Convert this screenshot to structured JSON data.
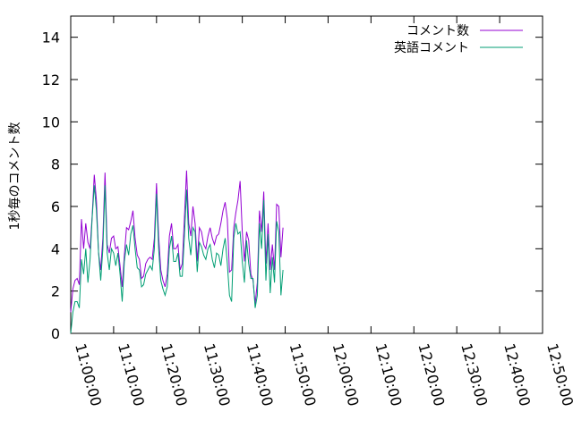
{
  "chart_data": {
    "type": "line",
    "ylabel": "1秒毎のコメント数",
    "xlabel": "",
    "ylim": [
      0,
      15
    ],
    "yticks": [
      "0",
      "2",
      "4",
      "6",
      "8",
      "10",
      "12",
      "14"
    ],
    "x_start": "11:00:00",
    "x_step_seconds": 30,
    "xticks": [
      "11:00:00",
      "11:10:00",
      "11:20:00",
      "11:30:00",
      "11:40:00",
      "11:50:00",
      "12:00:00",
      "12:10:00",
      "12:20:00",
      "12:30:00",
      "12:40:00",
      "12:50:00"
    ],
    "xlim": [
      "11:00:00",
      "12:50:00"
    ],
    "grid": false,
    "legend_position": "top-right",
    "series": [
      {
        "name": "コメント数",
        "color": "#9400d3",
        "values": [
          1.0,
          2.1,
          2.5,
          2.6,
          2.3,
          5.4,
          4.0,
          5.2,
          4.3,
          4.0,
          5.6,
          7.5,
          6.3,
          3.8,
          3.0,
          4.5,
          7.6,
          4.2,
          3.8,
          4.5,
          4.6,
          4.0,
          4.1,
          3.2,
          2.2,
          3.7,
          5.0,
          4.9,
          5.3,
          5.8,
          4.5,
          3.7,
          3.5,
          2.6,
          2.7,
          3.3,
          3.5,
          3.6,
          3.5,
          4.5,
          7.1,
          4.6,
          3.0,
          2.5,
          2.2,
          2.8,
          4.6,
          5.2,
          4.0,
          4.0,
          4.2,
          3.0,
          3.3,
          5.5,
          7.7,
          5.2,
          4.6,
          6.0,
          5.2,
          3.4,
          5.0,
          4.8,
          4.2,
          4.0,
          4.6,
          5.0,
          4.5,
          4.2,
          4.6,
          4.7,
          5.2,
          5.8,
          6.2,
          5.4,
          2.9,
          3.0,
          5.0,
          5.7,
          6.3,
          7.2,
          4.8,
          3.4,
          4.8,
          4.4,
          2.8,
          2.5,
          1.4,
          2.4,
          5.8,
          4.8,
          6.7,
          3.3,
          5.2,
          3.0,
          4.2,
          3.0,
          6.1,
          6.0,
          3.6,
          5.0
        ]
      },
      {
        "name": "英語コメント",
        "color": "#009e73",
        "values": [
          0.0,
          1.0,
          1.5,
          1.5,
          1.2,
          3.5,
          2.8,
          4.0,
          2.4,
          3.5,
          5.5,
          7.0,
          5.8,
          3.8,
          2.5,
          4.0,
          7.0,
          3.8,
          3.0,
          4.0,
          3.8,
          3.2,
          3.8,
          2.8,
          1.5,
          3.4,
          4.2,
          3.7,
          4.7,
          5.1,
          4.0,
          3.1,
          3.0,
          2.2,
          2.3,
          2.8,
          3.0,
          3.2,
          3.0,
          4.0,
          6.6,
          4.0,
          2.5,
          2.1,
          1.8,
          2.2,
          4.0,
          4.6,
          3.4,
          3.4,
          3.8,
          2.7,
          2.7,
          4.6,
          6.8,
          4.5,
          3.7,
          5.0,
          4.8,
          2.9,
          4.3,
          4.1,
          3.7,
          3.5,
          4.0,
          4.2,
          3.5,
          3.1,
          3.8,
          3.7,
          3.2,
          4.0,
          4.5,
          3.3,
          1.8,
          1.5,
          4.5,
          5.2,
          4.7,
          4.8,
          3.4,
          2.4,
          4.4,
          3.3,
          2.6,
          2.6,
          1.2,
          1.8,
          5.2,
          4.0,
          6.3,
          2.5,
          4.7,
          1.9,
          3.6,
          2.4,
          5.3,
          4.8,
          1.8,
          3.0
        ]
      }
    ]
  }
}
